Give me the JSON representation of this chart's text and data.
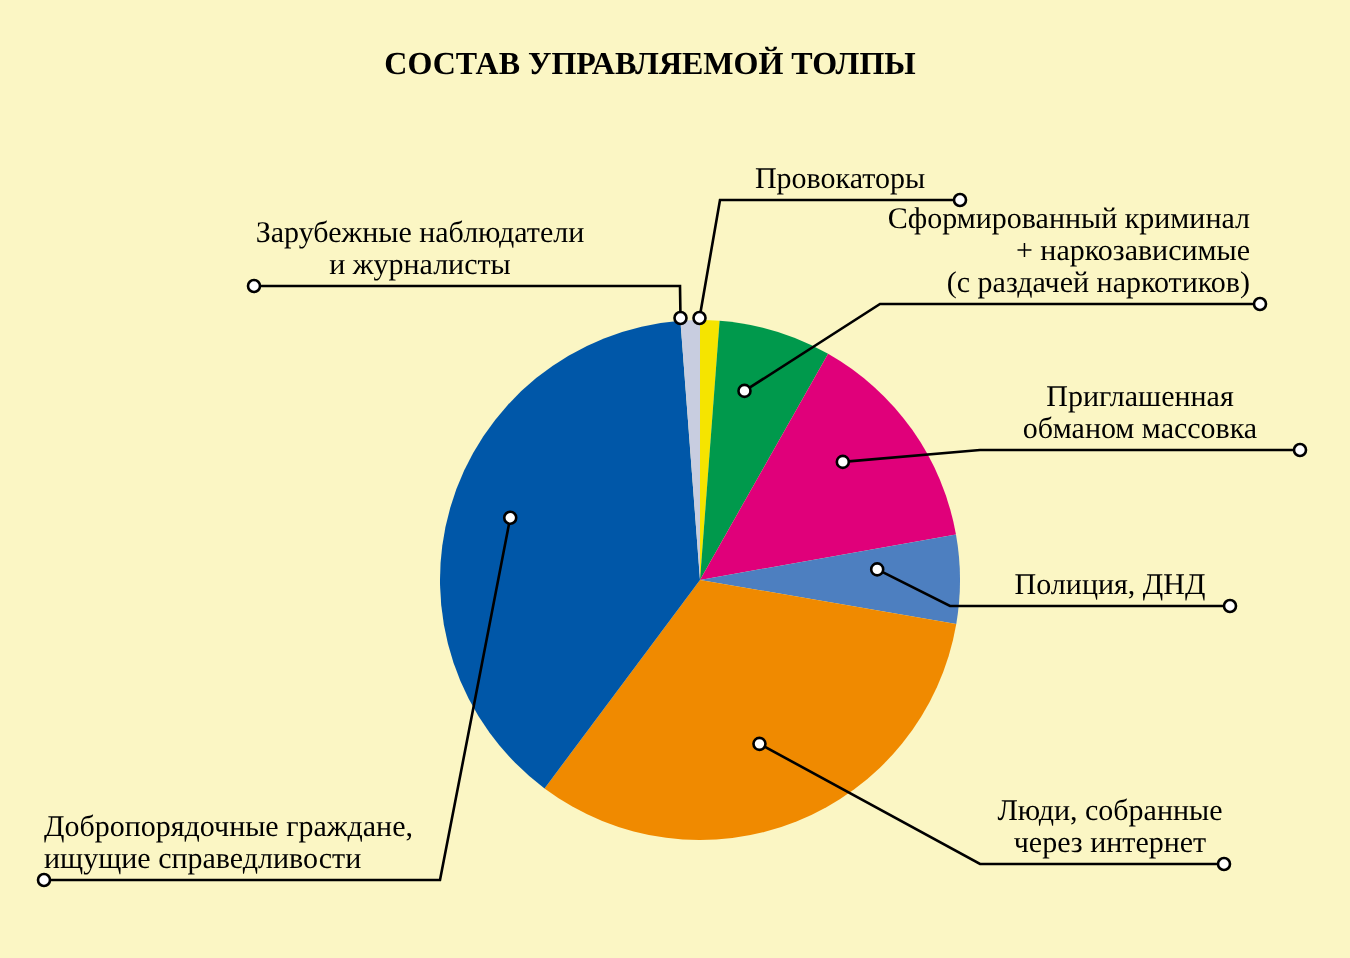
{
  "chart_data": {
    "type": "pie",
    "title": "СОСТАВ УПРАВЛЯЕМОЙ ТОЛПЫ",
    "categories": [
      "Провокаторы",
      "Сформированный криминал\n+ наркозависимые\n(с раздачей наркотиков)",
      "Приглашенная\nобманом массовка",
      "Полиция, ДНД",
      "Люди, собранные\nчерез интернет",
      "Добропорядочные граждане,\nищущие справедливости",
      "Зарубежные наблюдатели\nи журналисты"
    ],
    "values": [
      1.2,
      7,
      14,
      5.5,
      32.5,
      38.6,
      1.2
    ],
    "colors": [
      "#f5e400",
      "#00994c",
      "#e0007a",
      "#4d7fc0",
      "#f08a00",
      "#0057a8",
      "#c8cde0"
    ]
  }
}
